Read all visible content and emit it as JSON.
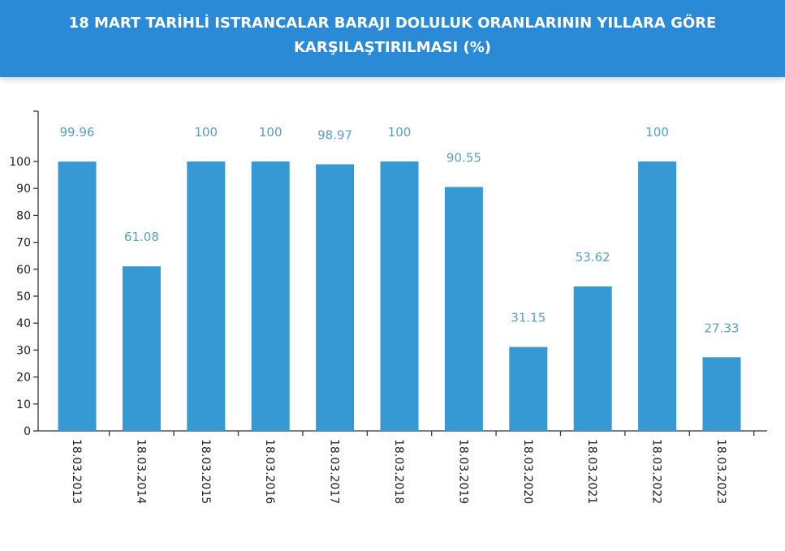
{
  "header": {
    "title_line1": "18 MART TARİHLİ ISTRANCALAR BARAJI DOLULUK ORANLARININ YILLARA GÖRE",
    "title_line2": "KARŞILAŞTIRILMASI (%)",
    "background_color": "#2a8ad6"
  },
  "chart_data": {
    "type": "bar",
    "title": "18 MART TARİHLİ ISTRANCALAR BARAJI DOLULUK ORANLARININ YILLARA GÖRE KARŞILAŞTIRILMASI (%)",
    "categories": [
      "18.03.2013",
      "18.03.2014",
      "18.03.2015",
      "18.03.2016",
      "18.03.2017",
      "18.03.2018",
      "18.03.2019",
      "18.03.2020",
      "18.03.2021",
      "18.03.2022",
      "18.03.2023"
    ],
    "values": [
      99.96,
      61.08,
      100,
      100,
      98.97,
      100,
      90.55,
      31.15,
      53.62,
      100,
      27.33
    ],
    "value_labels": [
      "99.96",
      "61.08",
      "100",
      "100",
      "98.97",
      "100",
      "90.55",
      "31.15",
      "53.62",
      "100",
      "27.33"
    ],
    "yticks": [
      "0",
      "10",
      "20",
      "30",
      "40",
      "50",
      "60",
      "70",
      "80",
      "90",
      "100"
    ],
    "ylim": [
      0,
      100
    ],
    "xlabel": "",
    "ylabel": "",
    "grid": false,
    "bar_color": "#3699d4",
    "label_color": "#5a9ec4"
  }
}
